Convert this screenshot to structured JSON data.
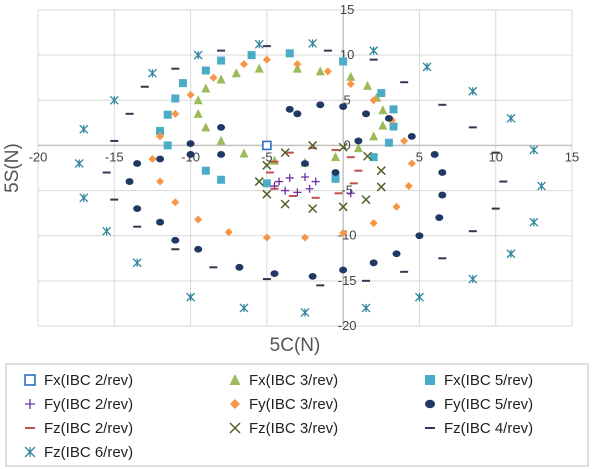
{
  "chart_data": {
    "type": "scatter",
    "xlabel": "5C(N)",
    "ylabel": "5S(N)",
    "xlim": [
      -20,
      15
    ],
    "ylim": [
      -20,
      15
    ],
    "x_ticks": [
      -20,
      -15,
      -10,
      -5,
      0,
      5,
      10,
      15
    ],
    "y_ticks": [
      -20,
      -15,
      -10,
      -5,
      0,
      5,
      10,
      15
    ],
    "grid": true,
    "legend_placement": "bottom",
    "series": [
      {
        "name": "Fx(IBC 2/rev)",
        "marker": "square-open",
        "color": "#2e6fc4",
        "points": [
          [
            -5.0,
            0.0
          ]
        ]
      },
      {
        "name": "Fx(IBC 3/rev)",
        "marker": "triangle",
        "color": "#9bbb59",
        "points": [
          [
            -3.0,
            8.5
          ],
          [
            -1.5,
            8.2
          ],
          [
            0.5,
            7.6
          ],
          [
            1.6,
            6.6
          ],
          [
            2.2,
            5.3
          ],
          [
            2.6,
            3.9
          ],
          [
            2.6,
            2.2
          ],
          [
            2.0,
            1.0
          ],
          [
            1.0,
            -0.3
          ],
          [
            -0.5,
            -1.3
          ],
          [
            -2.5,
            -1.9
          ],
          [
            -4.5,
            -1.7
          ],
          [
            -6.5,
            -0.9
          ],
          [
            -8.0,
            0.5
          ],
          [
            -9.0,
            2.0
          ],
          [
            -9.5,
            3.5
          ],
          [
            -9.5,
            5.0
          ],
          [
            -9.0,
            6.3
          ],
          [
            -8.0,
            7.3
          ],
          [
            -7.0,
            8.0
          ],
          [
            -5.5,
            8.5
          ]
        ]
      },
      {
        "name": "Fx(IBC 5/rev)",
        "marker": "square",
        "color": "#4aacc6",
        "points": [
          [
            -6.0,
            10.0
          ],
          [
            -3.5,
            10.2
          ],
          [
            0.0,
            9.3
          ],
          [
            2.5,
            5.8
          ],
          [
            3.3,
            4.0
          ],
          [
            3.3,
            2.1
          ],
          [
            3.0,
            0.3
          ],
          [
            2.0,
            -1.3
          ],
          [
            -0.5,
            -3.7
          ],
          [
            -5.0,
            -4.2
          ],
          [
            -8.0,
            -3.8
          ],
          [
            -9.0,
            -2.8
          ],
          [
            -11.5,
            0.0
          ],
          [
            -12.0,
            1.6
          ],
          [
            -11.5,
            3.4
          ],
          [
            -11.0,
            5.2
          ],
          [
            -10.5,
            6.9
          ],
          [
            -9.0,
            8.3
          ],
          [
            -8.0,
            9.4
          ]
        ]
      },
      {
        "name": "Fy(IBC 2/rev)",
        "marker": "plus",
        "color": "#7030a0",
        "points": [
          [
            -4.5,
            -4.5
          ],
          [
            -3.8,
            -5.0
          ],
          [
            -3.0,
            -5.2
          ],
          [
            -2.2,
            -4.8
          ],
          [
            -1.8,
            -4.0
          ],
          [
            -2.5,
            -3.5
          ],
          [
            -3.5,
            -3.6
          ],
          [
            -4.2,
            -4.0
          ],
          [
            0.5,
            -5.3
          ]
        ]
      },
      {
        "name": "Fy(IBC 3/rev)",
        "marker": "diamond",
        "color": "#f79646",
        "points": [
          [
            -6.5,
            9.0
          ],
          [
            -5.0,
            9.5
          ],
          [
            -3.0,
            9.0
          ],
          [
            -1.0,
            8.2
          ],
          [
            0.5,
            6.8
          ],
          [
            2.0,
            5.0
          ],
          [
            3.2,
            2.8
          ],
          [
            4.0,
            0.5
          ],
          [
            4.5,
            -2.0
          ],
          [
            4.3,
            -4.5
          ],
          [
            3.5,
            -6.8
          ],
          [
            2.0,
            -8.6
          ],
          [
            0.0,
            -9.7
          ],
          [
            -2.5,
            -10.2
          ],
          [
            -5.0,
            -10.2
          ],
          [
            -7.5,
            -9.6
          ],
          [
            -9.5,
            -8.2
          ],
          [
            -11.0,
            -6.3
          ],
          [
            -12.0,
            -4.0
          ],
          [
            -12.5,
            -1.5
          ],
          [
            -12.0,
            1.0
          ],
          [
            -11.0,
            3.5
          ],
          [
            -10.0,
            5.6
          ],
          [
            -8.5,
            7.5
          ]
        ]
      },
      {
        "name": "Fy(IBC 5/rev)",
        "marker": "circle",
        "color": "#1f3864",
        "points": [
          [
            -3.5,
            4.0
          ],
          [
            0.0,
            4.3
          ],
          [
            3.0,
            3.0
          ],
          [
            4.5,
            1.0
          ],
          [
            6.0,
            -1.0
          ],
          [
            6.5,
            -3.0
          ],
          [
            6.5,
            -5.5
          ],
          [
            6.3,
            -8.0
          ],
          [
            5.0,
            -10.0
          ],
          [
            3.5,
            -12.0
          ],
          [
            2.0,
            -13.0
          ],
          [
            0.0,
            -13.8
          ],
          [
            -2.0,
            -14.5
          ],
          [
            -4.5,
            -14.2
          ],
          [
            -6.8,
            -13.5
          ],
          [
            -9.5,
            -11.5
          ],
          [
            -11.0,
            -10.5
          ],
          [
            -12.0,
            -8.5
          ],
          [
            -13.5,
            -7.0
          ],
          [
            -14.0,
            -4.0
          ],
          [
            -13.5,
            -2.0
          ],
          [
            -12.0,
            -1.5
          ],
          [
            -10.0,
            -1.0
          ],
          [
            -8.0,
            -1.0
          ],
          [
            -10.0,
            0.2
          ],
          [
            -8.0,
            2.0
          ],
          [
            -3.0,
            3.5
          ],
          [
            -2.5,
            -2.0
          ],
          [
            -0.5,
            -3.0
          ],
          [
            1.0,
            0.5
          ],
          [
            1.5,
            3.5
          ],
          [
            -1.5,
            4.5
          ]
        ]
      },
      {
        "name": "Fz(IBC 2/rev)",
        "marker": "dash",
        "color": "#c0504d",
        "points": [
          [
            -4.8,
            -3.0
          ],
          [
            -4.5,
            -1.8
          ],
          [
            -3.5,
            -0.8
          ],
          [
            -2.0,
            -0.3
          ],
          [
            -0.5,
            -0.5
          ],
          [
            0.5,
            -1.3
          ],
          [
            1.0,
            -2.8
          ],
          [
            0.7,
            -4.2
          ],
          [
            -0.3,
            -5.3
          ],
          [
            -1.8,
            -5.8
          ],
          [
            -3.3,
            -5.6
          ],
          [
            -4.5,
            -4.8
          ]
        ]
      },
      {
        "name": "Fz(IBC 3/rev)",
        "marker": "x",
        "color": "#4f6228",
        "points": [
          [
            -5.5,
            -4.0
          ],
          [
            -5.0,
            -2.2
          ],
          [
            -3.8,
            -0.8
          ],
          [
            -2.0,
            0.0
          ],
          [
            0.0,
            -0.2
          ],
          [
            1.6,
            -1.2
          ],
          [
            2.5,
            -2.8
          ],
          [
            2.5,
            -4.6
          ],
          [
            1.5,
            -6.0
          ],
          [
            0.0,
            -6.8
          ],
          [
            -2.0,
            -7.0
          ],
          [
            -3.8,
            -6.5
          ],
          [
            -5.0,
            -5.4
          ]
        ]
      },
      {
        "name": "Fz(IBC 4/rev)",
        "marker": "dash",
        "color": "#403152",
        "points": [
          [
            -5.0,
            11.0
          ],
          [
            -1.0,
            10.5
          ],
          [
            2.0,
            9.5
          ],
          [
            4.0,
            7.0
          ],
          [
            6.5,
            4.5
          ],
          [
            8.5,
            2.0
          ],
          [
            10.0,
            -0.8
          ],
          [
            10.5,
            -4.0
          ],
          [
            10.0,
            -7.0
          ],
          [
            8.5,
            -9.5
          ],
          [
            6.5,
            -12.5
          ],
          [
            4.0,
            -14.0
          ],
          [
            1.5,
            -15.0
          ],
          [
            -1.5,
            -15.5
          ],
          [
            -5.0,
            -14.8
          ],
          [
            -8.5,
            -13.5
          ],
          [
            -11.0,
            -11.5
          ],
          [
            -13.5,
            -9.0
          ],
          [
            -15.0,
            -6.0
          ],
          [
            -15.5,
            -3.0
          ],
          [
            -15.0,
            0.5
          ],
          [
            -14.0,
            3.5
          ],
          [
            -13.0,
            6.5
          ],
          [
            -11.0,
            8.5
          ],
          [
            -8.0,
            10.5
          ]
        ]
      },
      {
        "name": "Fz(IBC 6/rev)",
        "marker": "star",
        "color": "#31859c",
        "points": [
          [
            -5.5,
            11.2
          ],
          [
            -2.0,
            11.3
          ],
          [
            2.0,
            10.5
          ],
          [
            5.5,
            8.7
          ],
          [
            8.5,
            6.0
          ],
          [
            11.0,
            3.0
          ],
          [
            12.5,
            -0.5
          ],
          [
            13.0,
            -4.5
          ],
          [
            12.5,
            -8.5
          ],
          [
            11.0,
            -12.0
          ],
          [
            8.5,
            -14.8
          ],
          [
            5.0,
            -16.8
          ],
          [
            1.5,
            -18.0
          ],
          [
            -2.5,
            -18.5
          ],
          [
            -6.5,
            -18.0
          ],
          [
            -10.0,
            -16.8
          ],
          [
            -13.5,
            -13.0
          ],
          [
            -15.5,
            -9.5
          ],
          [
            -17.0,
            -5.8
          ],
          [
            -17.3,
            -2.0
          ],
          [
            -17.0,
            1.8
          ],
          [
            -15.0,
            5.0
          ],
          [
            -12.5,
            8.0
          ],
          [
            -9.5,
            10.0
          ]
        ]
      }
    ]
  }
}
